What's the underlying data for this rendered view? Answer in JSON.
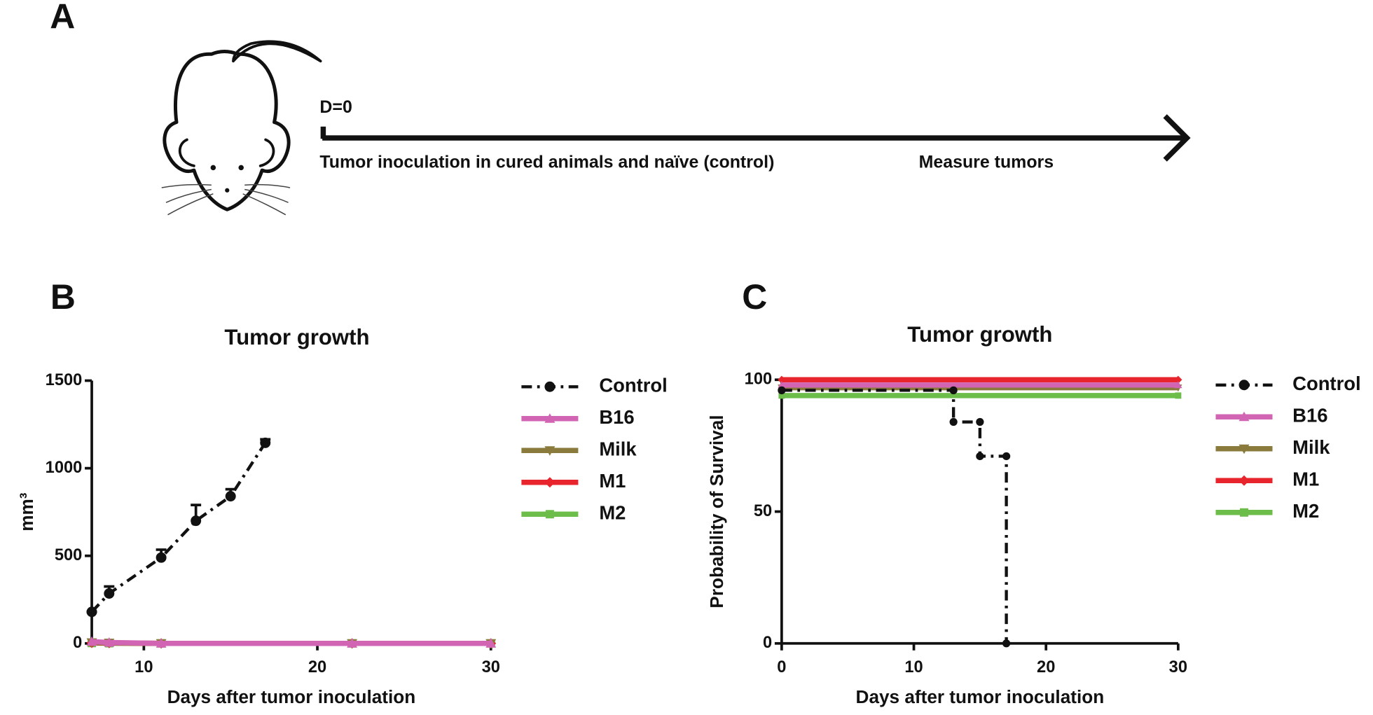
{
  "panel_a": {
    "label": "A",
    "day": "D=0",
    "step1": "Tumor inoculation in cured animals and naïve (control)",
    "step2": "Measure tumors"
  },
  "chart_data": [
    {
      "type": "line",
      "panel_label": "B",
      "title": "Tumor growth",
      "x_label": "Days after tumor inoculation",
      "y_label": "mm³",
      "xlim": [
        7,
        30
      ],
      "xticks": [
        10,
        20,
        30
      ],
      "ylim": [
        0,
        1500
      ],
      "yticks": [
        0,
        500,
        1000,
        1500
      ],
      "series": [
        {
          "name": "Control",
          "color": "#111111",
          "marker": "circle",
          "linestyle": "dash-dot",
          "x": [
            7,
            8,
            11,
            13,
            15,
            17
          ],
          "values": [
            180,
            285,
            490,
            700,
            840,
            1145
          ],
          "errors": [
            0,
            40,
            45,
            90,
            40,
            20
          ]
        },
        {
          "name": "B16",
          "color": "#d264b4",
          "marker": "triangle-up",
          "linestyle": "solid",
          "x": [
            7,
            8,
            11,
            22,
            30
          ],
          "values": [
            10,
            5,
            0,
            0,
            0
          ]
        },
        {
          "name": "Milk",
          "color": "#8a7a3c",
          "marker": "triangle-down",
          "linestyle": "solid",
          "x": [
            7,
            8,
            11,
            22,
            30
          ],
          "values": [
            5,
            3,
            0,
            0,
            0
          ]
        },
        {
          "name": "M1",
          "color": "#e8242c",
          "marker": "diamond",
          "linestyle": "solid",
          "x": [
            7,
            8,
            11,
            22,
            30
          ],
          "values": [
            3,
            2,
            0,
            0,
            0
          ]
        },
        {
          "name": "M2",
          "color": "#6cbd4a",
          "marker": "square",
          "linestyle": "solid",
          "x": [
            7,
            8,
            11,
            22,
            30
          ],
          "values": [
            2,
            1,
            0,
            0,
            0
          ]
        }
      ]
    },
    {
      "type": "step",
      "panel_label": "C",
      "title": "Tumor growth",
      "x_label": "Days after tumor inoculation",
      "y_label": "Probability of Survival",
      "xlim": [
        0,
        30
      ],
      "xticks": [
        0,
        10,
        20,
        30
      ],
      "ylim": [
        0,
        100
      ],
      "yticks": [
        0,
        50,
        100
      ],
      "series": [
        {
          "name": "Control",
          "color": "#111111",
          "marker": "circle",
          "linestyle": "dash-dot",
          "x": [
            0,
            13,
            13,
            15,
            15,
            17,
            17
          ],
          "values": [
            96,
            96,
            84,
            84,
            71,
            71,
            0
          ]
        },
        {
          "name": "B16",
          "color": "#d264b4",
          "marker": "triangle-up",
          "linestyle": "solid",
          "x": [
            0,
            30
          ],
          "values": [
            98,
            98
          ]
        },
        {
          "name": "Milk",
          "color": "#8a7a3c",
          "marker": "triangle-down",
          "linestyle": "solid",
          "x": [
            0,
            30
          ],
          "values": [
            97,
            97
          ]
        },
        {
          "name": "M1",
          "color": "#e8242c",
          "marker": "diamond",
          "linestyle": "solid",
          "x": [
            0,
            30
          ],
          "values": [
            100,
            100
          ]
        },
        {
          "name": "M2",
          "color": "#6cbd4a",
          "marker": "square",
          "linestyle": "solid",
          "x": [
            0,
            30
          ],
          "values": [
            94,
            94
          ]
        }
      ]
    }
  ]
}
